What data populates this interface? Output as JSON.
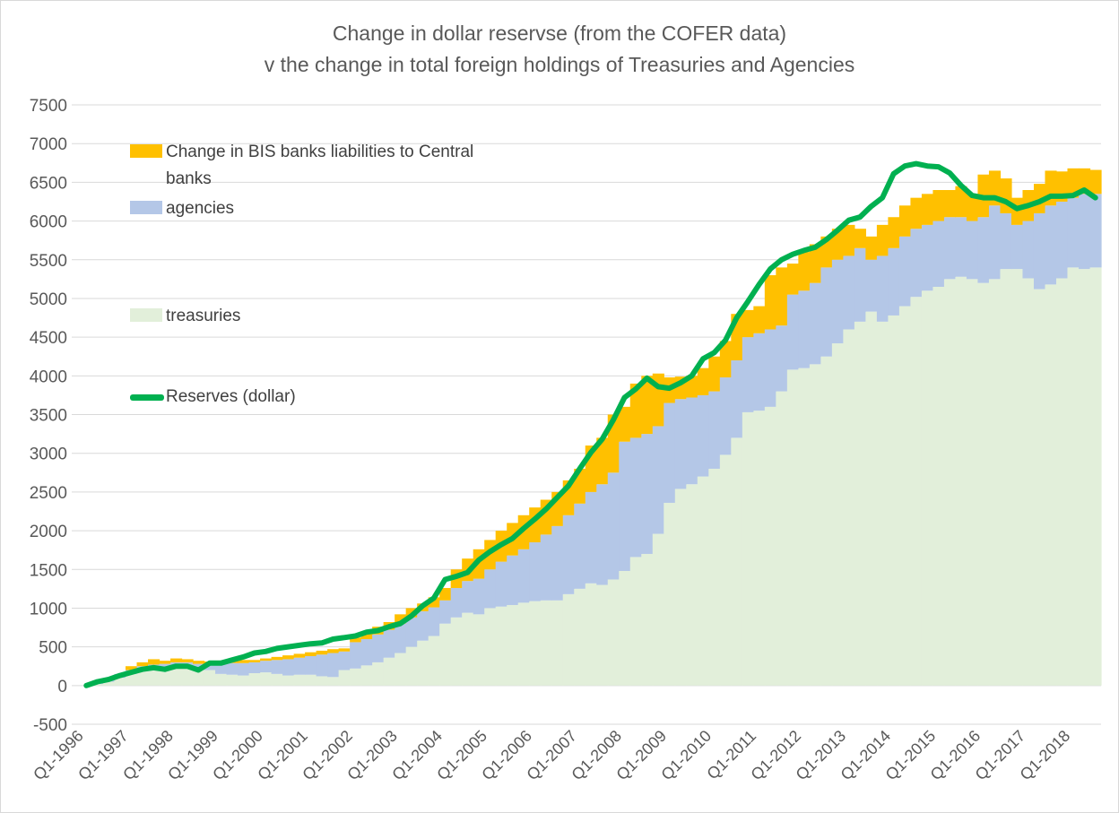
{
  "chart_data": {
    "type": "stacked-step-area",
    "title": [
      "Change in dollar reservse (from the COFER data)",
      "v the change in total foreign holdings of Treasuries and Agencies"
    ],
    "categories": [
      "Q1-1996",
      null,
      null,
      null,
      "Q1-1997",
      null,
      null,
      null,
      "Q1-1998",
      null,
      null,
      null,
      "Q1-1999",
      null,
      null,
      null,
      "Q1-2000",
      null,
      null,
      null,
      "Q1-2001",
      null,
      null,
      null,
      "Q1-2002",
      null,
      null,
      null,
      "Q1-2003",
      null,
      null,
      null,
      "Q1-2004",
      null,
      null,
      null,
      "Q1-2005",
      null,
      null,
      null,
      "Q1-2006",
      null,
      null,
      null,
      "Q1-2007",
      null,
      null,
      null,
      "Q1-2008",
      null,
      null,
      null,
      "Q1-2009",
      null,
      null,
      null,
      "Q1-2010",
      null,
      null,
      null,
      "Q1-2011",
      null,
      null,
      null,
      "Q1-2012",
      null,
      null,
      null,
      "Q1-2013",
      null,
      null,
      null,
      "Q1-2014",
      null,
      null,
      null,
      "Q1-2015",
      null,
      null,
      null,
      "Q1-2016",
      null,
      null,
      null,
      "Q1-2017",
      null,
      null,
      null,
      "Q1-2018",
      null,
      null
    ],
    "series": [
      {
        "name": "Change in BIS banks liabilities to Central banks",
        "kind": "area",
        "color": "#ffc000",
        "values": [
          0,
          0,
          10,
          0,
          50,
          50,
          70,
          40,
          50,
          40,
          40,
          40,
          40,
          40,
          40,
          30,
          30,
          40,
          50,
          50,
          50,
          50,
          50,
          40,
          60,
          80,
          100,
          100,
          120,
          120,
          100,
          130,
          160,
          240,
          290,
          380,
          380,
          400,
          420,
          440,
          450,
          450,
          440,
          450,
          450,
          600,
          600,
          750,
          450,
          700,
          750,
          680,
          330,
          290,
          280,
          350,
          450,
          470,
          600,
          350,
          350,
          700,
          750,
          400,
          500,
          500,
          400,
          400,
          400,
          250,
          300,
          400,
          400,
          400,
          400,
          400,
          400,
          350,
          400,
          350,
          550,
          450,
          450,
          350,
          400,
          380,
          450,
          390,
          380,
          330,
          310
        ]
      },
      {
        "name": "agencies",
        "kind": "area",
        "color": "#b4c7e7",
        "values": [
          0,
          10,
          30,
          50,
          50,
          50,
          50,
          50,
          50,
          50,
          50,
          70,
          130,
          150,
          160,
          140,
          150,
          180,
          210,
          220,
          240,
          280,
          310,
          240,
          340,
          340,
          360,
          360,
          380,
          380,
          380,
          370,
          300,
          380,
          410,
          460,
          500,
          580,
          640,
          690,
          760,
          850,
          960,
          1020,
          1100,
          1180,
          1300,
          1380,
          1670,
          1540,
          1550,
          1390,
          1290,
          1160,
          1120,
          1050,
          1000,
          1000,
          1000,
          970,
          1000,
          1000,
          850,
          970,
          1000,
          1050,
          1150,
          1080,
          950,
          950,
          670,
          850,
          870,
          900,
          880,
          850,
          850,
          800,
          770,
          750,
          850,
          950,
          720,
          570,
          740,
          980,
          1020,
          990,
          900,
          970,
          950
        ]
      },
      {
        "name": "treasuries",
        "kind": "area",
        "color": "#e2efda",
        "values": [
          0,
          20,
          50,
          100,
          150,
          200,
          220,
          230,
          250,
          250,
          230,
          200,
          150,
          140,
          130,
          160,
          170,
          150,
          130,
          140,
          140,
          120,
          110,
          200,
          220,
          260,
          300,
          360,
          420,
          500,
          580,
          640,
          800,
          880,
          940,
          920,
          1000,
          1020,
          1040,
          1070,
          1090,
          1100,
          1100,
          1180,
          1250,
          1320,
          1300,
          1370,
          1480,
          1660,
          1700,
          1960,
          2360,
          2540,
          2600,
          2700,
          2800,
          2980,
          3200,
          3530,
          3550,
          3600,
          3800,
          4080,
          4100,
          4150,
          4250,
          4420,
          4600,
          4700,
          4830,
          4700,
          4780,
          4900,
          5020,
          5100,
          5150,
          5250,
          5280,
          5250,
          5200,
          5250,
          5380,
          5380,
          5260,
          5120,
          5180,
          5260,
          5400,
          5380,
          5400
        ]
      },
      {
        "name": "Reserves (dollar)",
        "kind": "line",
        "color": "#00b050",
        "values": [
          0,
          50,
          80,
          130,
          170,
          210,
          230,
          210,
          250,
          250,
          200,
          290,
          290,
          330,
          370,
          420,
          440,
          480,
          500,
          520,
          540,
          550,
          600,
          620,
          640,
          690,
          710,
          760,
          800,
          900,
          1030,
          1130,
          1370,
          1410,
          1460,
          1620,
          1730,
          1820,
          1900,
          2030,
          2150,
          2280,
          2430,
          2580,
          2800,
          3010,
          3180,
          3430,
          3720,
          3830,
          3970,
          3860,
          3840,
          3910,
          4000,
          4220,
          4300,
          4460,
          4750,
          4960,
          5180,
          5380,
          5500,
          5570,
          5620,
          5660,
          5760,
          5880,
          6010,
          6050,
          6190,
          6300,
          6610,
          6710,
          6740,
          6710,
          6700,
          6620,
          6460,
          6330,
          6300,
          6300,
          6250,
          6160,
          6200,
          6250,
          6320,
          6320,
          6330,
          6400,
          6300
        ]
      }
    ],
    "ylim": [
      -500,
      7500
    ],
    "yticks": [
      -500,
      0,
      500,
      1000,
      1500,
      2000,
      2500,
      3000,
      3500,
      4000,
      4500,
      5000,
      5500,
      6000,
      6500,
      7000,
      7500
    ],
    "grid": true,
    "legend": "top-left"
  }
}
